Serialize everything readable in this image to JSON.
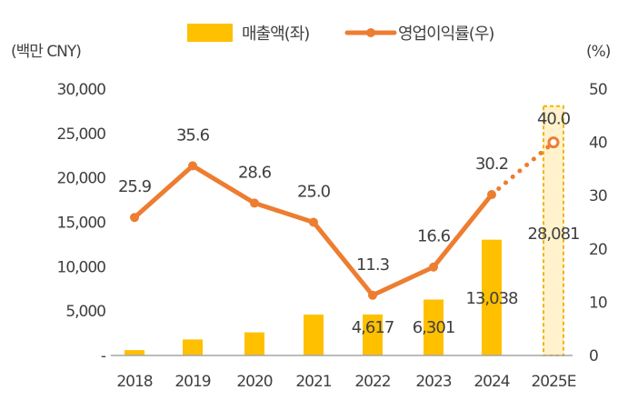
{
  "chart_data": {
    "type": "bar+line",
    "categories": [
      "2018",
      "2019",
      "2020",
      "2021",
      "2022",
      "2023",
      "2024",
      "2025E"
    ],
    "left_axis": {
      "label": "(백만 CNY)",
      "ylim": [
        0,
        30000
      ],
      "ticks": [
        "-",
        "5,000",
        "10,000",
        "15,000",
        "20,000",
        "25,000",
        "30,000"
      ],
      "tick_values": [
        0,
        5000,
        10000,
        15000,
        20000,
        25000,
        30000
      ]
    },
    "right_axis": {
      "label": "(%)",
      "ylim": [
        0,
        50
      ],
      "ticks": [
        "0",
        "10",
        "20",
        "30",
        "40",
        "50"
      ],
      "tick_values": [
        0,
        10,
        20,
        30,
        40,
        50
      ]
    },
    "series": [
      {
        "name": "매출액(좌)",
        "type": "bar",
        "axis": "left",
        "color": "#FFC000",
        "values": [
          600,
          1800,
          2600,
          4600,
          4617,
          6301,
          13038,
          28081
        ],
        "labels": [
          "",
          "",
          "",
          "",
          "4,617",
          "6,301",
          "13,038",
          "28,081"
        ],
        "estimate_index": 7,
        "estimate_fill": "#FFF2CC",
        "estimate_border": "#F4B400"
      },
      {
        "name": "영업이익률(우)",
        "type": "line",
        "axis": "right",
        "color": "#ED7D31",
        "values": [
          25.9,
          35.6,
          28.6,
          25.0,
          11.3,
          16.6,
          30.2,
          40.0
        ],
        "labels": [
          "25.9",
          "35.6",
          "28.6",
          "25.0",
          "11.3",
          "16.6",
          "30.2",
          "40.0"
        ],
        "estimate_index": 7
      }
    ],
    "legend": "top-center"
  }
}
